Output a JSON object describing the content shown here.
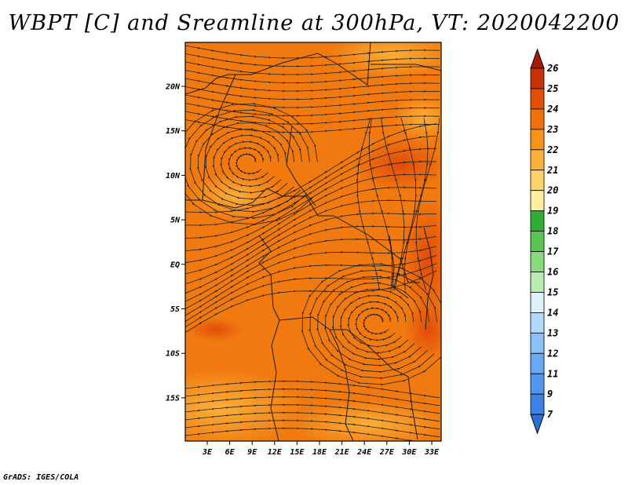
{
  "title": "WBPT [C] and Sreamline at 300hPa, VT: 2020042200",
  "credit": "GrADS: IGES/COLA",
  "map": {
    "lon_labels": [
      "3E",
      "6E",
      "9E",
      "12E",
      "15E",
      "18E",
      "21E",
      "24E",
      "27E",
      "30E",
      "33E"
    ],
    "lat_labels": [
      "20N",
      "15N",
      "10N",
      "5N",
      "EQ",
      "5S",
      "10S",
      "15S"
    ],
    "colorbar": {
      "labels": [
        "7",
        "9",
        "11",
        "12",
        "13",
        "14",
        "15",
        "16",
        "17",
        "18",
        "19",
        "20",
        "21",
        "22",
        "23",
        "24",
        "25",
        "26"
      ],
      "colors": [
        "#2a6fdc",
        "#3c82e6",
        "#5096ee",
        "#69a9f4",
        "#8cc0f8",
        "#b4d8fb",
        "#dff1fb",
        "#b8ecb0",
        "#8ad97e",
        "#5ac451",
        "#2fae33",
        "#fff0a0",
        "#fdd46a",
        "#fbb23a",
        "#f7921a",
        "#f2700a",
        "#e14f05",
        "#c83205",
        "#a81a05"
      ],
      "low_arrow_color": "#2a6fdc",
      "high_arrow_color": "#a81a05"
    },
    "field_colors": {
      "base": "#f07a10",
      "warm": "#e8560a",
      "cool": "#f79a1e",
      "coolest": "#fbb23a"
    },
    "vortices": [
      {
        "name": "northern-cyclone",
        "lon": 8.5,
        "lat": 11.5
      },
      {
        "name": "southern-cyclone",
        "lon": 25.5,
        "lat": -6.5
      }
    ]
  }
}
